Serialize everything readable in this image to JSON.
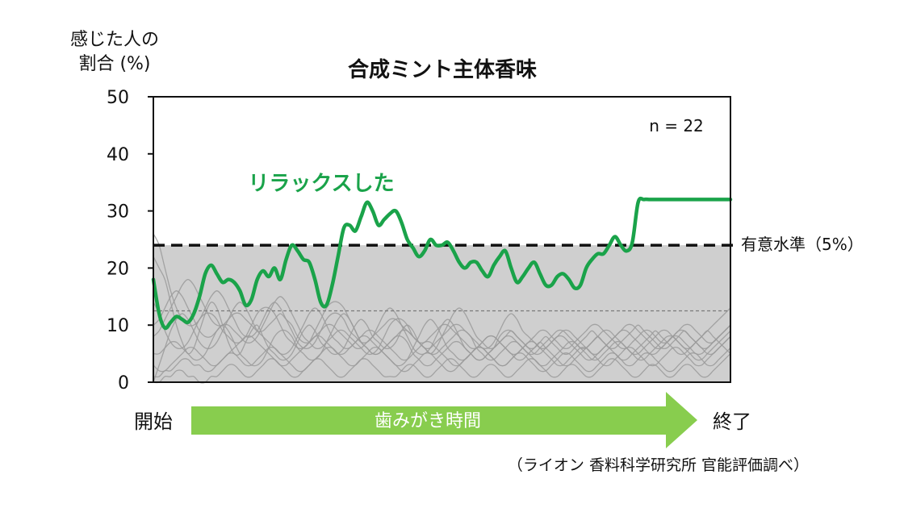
{
  "chart_data": {
    "type": "line",
    "title": "合成ミント主体香味",
    "ylabel_line1": "感じた人の",
    "ylabel_line2": "割合 (%)",
    "ylim": [
      0,
      50
    ],
    "y_ticks": [
      "0",
      "10",
      "20",
      "30",
      "40",
      "50"
    ],
    "x_range": [
      0,
      100
    ],
    "annotation_n": "n = 22",
    "grid": false,
    "highlight_series": {
      "name": "リラックスした",
      "color": "#1aa34a",
      "x": [
        0,
        1,
        2,
        3,
        4,
        5,
        6,
        7,
        8,
        9,
        10,
        11,
        12,
        13,
        14,
        15,
        16,
        17,
        18,
        19,
        20,
        21,
        22,
        23,
        24,
        25,
        26,
        27,
        28,
        29,
        30,
        31,
        32,
        33,
        34,
        35,
        36,
        37,
        38,
        39,
        40,
        41,
        42,
        43,
        44,
        45,
        46,
        47,
        48,
        49,
        50,
        51,
        52,
        53,
        54,
        55,
        56,
        57,
        58,
        59,
        60,
        61,
        62,
        63,
        64,
        65,
        66,
        67,
        68,
        69,
        70,
        71,
        72,
        73,
        74,
        75,
        76,
        77,
        78,
        79,
        80,
        81,
        82,
        83,
        84,
        85,
        86,
        87,
        88,
        89,
        90,
        91,
        92,
        93,
        94,
        95,
        96,
        97,
        98,
        99,
        100
      ],
      "values": [
        18,
        12,
        9.5,
        10.5,
        11.5,
        11,
        10.5,
        12,
        15,
        19,
        20.5,
        19,
        17.5,
        18,
        17.5,
        16,
        13.5,
        14.5,
        18,
        19.5,
        18.5,
        20,
        18,
        21.5,
        24,
        23,
        21.5,
        21,
        18,
        14,
        13.5,
        17,
        22,
        27,
        27.5,
        26.5,
        29,
        31.5,
        30,
        27.5,
        28.5,
        29.5,
        30,
        28,
        25,
        23.5,
        22,
        23,
        25,
        24,
        24,
        24.5,
        23,
        21,
        20,
        21,
        21,
        19.5,
        18.5,
        20.5,
        22,
        23,
        20,
        17.5,
        18.5,
        20,
        21,
        19,
        17,
        17,
        18.5,
        19,
        18,
        16.5,
        17,
        20,
        21.5,
        22.5,
        22.5,
        24,
        25.5,
        24,
        23,
        24.5,
        31.5,
        32,
        32,
        32,
        32,
        32,
        32,
        32,
        32,
        32,
        32,
        32,
        32,
        32,
        32,
        32,
        32
      ]
    },
    "background_series_color": "#9a9a9a",
    "background_series": [
      {
        "values": [
          22,
          20,
          18,
          14,
          10,
          7,
          5,
          6,
          9,
          12,
          14,
          13,
          10,
          7,
          5,
          5,
          7,
          9,
          10,
          8,
          6,
          5,
          4,
          4,
          5,
          7,
          9,
          10,
          9,
          7,
          6,
          5,
          5,
          6,
          8,
          10,
          11,
          10,
          8,
          7,
          6,
          6,
          7,
          9,
          10,
          9,
          7,
          6,
          5,
          6,
          8,
          10,
          12,
          13,
          12,
          10,
          8,
          7,
          6,
          6,
          7,
          8,
          9,
          8,
          7,
          6,
          6,
          7,
          8,
          7,
          6,
          5,
          5,
          6,
          7,
          8,
          9,
          8,
          7,
          6,
          6,
          7,
          8,
          9,
          10,
          9,
          8,
          7,
          6,
          6,
          7,
          8,
          9,
          8,
          7,
          6,
          5,
          5,
          6,
          7,
          8
        ]
      },
      {
        "values": [
          0,
          3,
          6,
          9,
          11,
          12,
          11,
          9,
          7,
          6,
          6,
          7,
          9,
          11,
          13,
          14,
          13,
          11,
          9,
          8,
          7,
          6,
          5,
          5,
          6,
          8,
          10,
          12,
          13,
          12,
          10,
          8,
          7,
          6,
          6,
          7,
          8,
          8,
          7,
          6,
          5,
          4,
          3,
          3,
          4,
          6,
          8,
          10,
          11,
          10,
          8,
          6,
          5,
          4,
          4,
          5,
          6,
          7,
          8,
          8,
          7,
          6,
          5,
          4,
          4,
          5,
          6,
          7,
          6,
          5,
          4,
          3,
          3,
          4,
          5,
          6,
          7,
          8,
          7,
          6,
          5,
          4,
          4,
          5,
          6,
          7,
          8,
          9,
          8,
          7,
          6,
          5,
          5,
          6,
          7,
          8,
          9,
          8,
          7,
          6,
          5
        ]
      },
      {
        "values": [
          26,
          24,
          20,
          16,
          13,
          11,
          10,
          10,
          11,
          13,
          15,
          16,
          15,
          13,
          11,
          9,
          8,
          8,
          9,
          11,
          13,
          14,
          13,
          11,
          9,
          7,
          6,
          6,
          7,
          9,
          11,
          12,
          12,
          11,
          9,
          8,
          7,
          7,
          8,
          10,
          12,
          13,
          12,
          10,
          8,
          6,
          5,
          5,
          6,
          8,
          10,
          11,
          10,
          8,
          6,
          5,
          4,
          4,
          5,
          6,
          8,
          9,
          9,
          8,
          7,
          6,
          5,
          5,
          6,
          7,
          8,
          8,
          7,
          6,
          5,
          4,
          4,
          5,
          6,
          7,
          8,
          9,
          9,
          8,
          7,
          6,
          5,
          5,
          6,
          7,
          8,
          8,
          7,
          6,
          5,
          5,
          6,
          7,
          8,
          9,
          10
        ]
      },
      {
        "values": [
          5,
          5,
          6,
          7,
          7,
          6,
          5,
          4,
          4,
          5,
          7,
          9,
          10,
          9,
          7,
          5,
          4,
          3,
          3,
          4,
          6,
          8,
          9,
          9,
          8,
          6,
          5,
          4,
          4,
          5,
          7,
          9,
          11,
          12,
          11,
          9,
          7,
          6,
          5,
          5,
          6,
          7,
          8,
          8,
          7,
          5,
          4,
          3,
          3,
          4,
          5,
          6,
          7,
          7,
          6,
          5,
          4,
          4,
          5,
          6,
          7,
          8,
          8,
          7,
          6,
          5,
          4,
          3,
          3,
          4,
          5,
          6,
          7,
          7,
          6,
          5,
          4,
          4,
          5,
          6,
          7,
          7,
          6,
          5,
          4,
          4,
          5,
          6,
          7,
          8,
          8,
          7,
          6,
          5,
          4,
          4,
          5,
          6,
          7,
          8,
          9
        ]
      },
      {
        "values": [
          10,
          11,
          13,
          15,
          16,
          15,
          13,
          11,
          9,
          8,
          8,
          9,
          10,
          10,
          9,
          8,
          7,
          7,
          8,
          10,
          12,
          14,
          15,
          14,
          12,
          10,
          8,
          7,
          6,
          6,
          7,
          8,
          9,
          9,
          8,
          7,
          6,
          5,
          5,
          6,
          8,
          10,
          11,
          11,
          10,
          8,
          7,
          6,
          5,
          5,
          6,
          7,
          8,
          9,
          9,
          8,
          7,
          6,
          6,
          7,
          9,
          11,
          12,
          11,
          9,
          8,
          7,
          6,
          6,
          7,
          8,
          9,
          9,
          8,
          7,
          6,
          5,
          5,
          6,
          7,
          8,
          9,
          10,
          10,
          9,
          8,
          7,
          6,
          6,
          7,
          8,
          9,
          9,
          8,
          7,
          6,
          6,
          7,
          8,
          9,
          10
        ]
      },
      {
        "values": [
          3,
          2,
          2,
          3,
          4,
          5,
          6,
          6,
          5,
          4,
          3,
          3,
          4,
          5,
          6,
          7,
          8,
          8,
          7,
          6,
          5,
          4,
          3,
          3,
          4,
          5,
          6,
          7,
          8,
          8,
          7,
          6,
          5,
          5,
          6,
          7,
          8,
          9,
          9,
          8,
          7,
          6,
          5,
          4,
          4,
          5,
          6,
          7,
          7,
          6,
          5,
          4,
          3,
          3,
          4,
          5,
          6,
          6,
          5,
          4,
          3,
          3,
          4,
          5,
          6,
          7,
          7,
          6,
          5,
          4,
          3,
          3,
          4,
          5,
          6,
          6,
          5,
          4,
          3,
          3,
          4,
          5,
          6,
          6,
          5,
          4,
          3,
          3,
          4,
          5,
          6,
          6,
          5,
          4,
          3,
          3,
          4,
          5,
          6,
          7,
          8
        ]
      },
      {
        "values": [
          14,
          12,
          9,
          7,
          6,
          6,
          7,
          9,
          11,
          12,
          12,
          11,
          9,
          8,
          7,
          7,
          8,
          10,
          12,
          13,
          13,
          12,
          10,
          8,
          7,
          6,
          6,
          7,
          9,
          11,
          13,
          14,
          14,
          13,
          11,
          9,
          7,
          6,
          5,
          5,
          6,
          7,
          8,
          9,
          9,
          8,
          7,
          6,
          6,
          7,
          8,
          9,
          10,
          10,
          9,
          8,
          6,
          5,
          4,
          4,
          5,
          6,
          7,
          7,
          6,
          5,
          5,
          6,
          7,
          8,
          9,
          9,
          8,
          7,
          6,
          6,
          7,
          8,
          9,
          9,
          8,
          7,
          6,
          5,
          5,
          6,
          7,
          8,
          9,
          9,
          8,
          7,
          6,
          6,
          7,
          8,
          9,
          10,
          11,
          12,
          13
        ]
      },
      {
        "values": [
          1,
          1,
          2,
          2,
          3,
          4,
          4,
          3,
          3,
          2,
          2,
          3,
          4,
          5,
          5,
          4,
          3,
          3,
          4,
          5,
          6,
          6,
          5,
          4,
          3,
          2,
          2,
          3,
          4,
          5,
          6,
          6,
          5,
          4,
          3,
          3,
          4,
          5,
          6,
          6,
          5,
          4,
          3,
          2,
          2,
          3,
          4,
          5,
          5,
          4,
          3,
          2,
          2,
          3,
          4,
          5,
          6,
          6,
          5,
          4,
          3,
          3,
          4,
          5,
          5,
          4,
          3,
          2,
          2,
          3,
          4,
          5,
          5,
          4,
          3,
          2,
          2,
          3,
          4,
          5,
          5,
          4,
          3,
          3,
          4,
          5,
          5,
          4,
          3,
          2,
          2,
          3,
          4,
          5,
          5,
          4,
          3,
          3,
          4,
          5,
          6
        ]
      },
      {
        "values": [
          8,
          9,
          11,
          13,
          15,
          17,
          18,
          17,
          15,
          13,
          11,
          10,
          10,
          11,
          12,
          12,
          11,
          10,
          9,
          9,
          10,
          11,
          12,
          11,
          10,
          8,
          7,
          7,
          8,
          9,
          10,
          10,
          9,
          8,
          7,
          6,
          6,
          7,
          8,
          9,
          10,
          11,
          11,
          10,
          9,
          8,
          7,
          7,
          8,
          9,
          10,
          10,
          9,
          8,
          7,
          6,
          6,
          7,
          8,
          8,
          7,
          6,
          5,
          5,
          6,
          7,
          8,
          9,
          9,
          8,
          7,
          6,
          6,
          7,
          8,
          9,
          10,
          10,
          9,
          8,
          7,
          6,
          6,
          7,
          8,
          9,
          9,
          8,
          7,
          7,
          8,
          9,
          10,
          10,
          9,
          8,
          7,
          7,
          8,
          9,
          10
        ]
      },
      {
        "values": [
          0,
          0,
          1,
          1,
          2,
          2,
          1,
          1,
          0,
          0,
          1,
          1,
          2,
          3,
          3,
          2,
          1,
          1,
          2,
          3,
          4,
          4,
          3,
          2,
          1,
          1,
          2,
          3,
          4,
          4,
          3,
          2,
          1,
          1,
          2,
          3,
          4,
          4,
          3,
          2,
          1,
          1,
          1,
          2,
          3,
          3,
          2,
          1,
          1,
          2,
          3,
          4,
          4,
          3,
          2,
          1,
          1,
          2,
          3,
          3,
          2,
          1,
          1,
          2,
          3,
          4,
          4,
          3,
          2,
          1,
          1,
          2,
          3,
          3,
          2,
          1,
          1,
          2,
          3,
          4,
          4,
          3,
          2,
          1,
          1,
          2,
          3,
          3,
          2,
          1,
          1,
          2,
          3,
          3,
          2,
          1,
          1,
          2,
          3,
          4,
          5
        ]
      }
    ],
    "shaded_region": {
      "y_top": 24,
      "color": "#cfcfcf"
    },
    "threshold_line": {
      "y": 24,
      "label": "有意水準（5%）",
      "style": "dashed"
    },
    "chance_line": {
      "y": 12.5,
      "style": "dotted"
    },
    "arrow": {
      "label": "歯みがき時間",
      "color": "#88cd4e"
    },
    "x_start_label": "開始",
    "x_end_label": "終了",
    "source": "（ライオン 香料科学研究所 官能評価調べ）"
  }
}
